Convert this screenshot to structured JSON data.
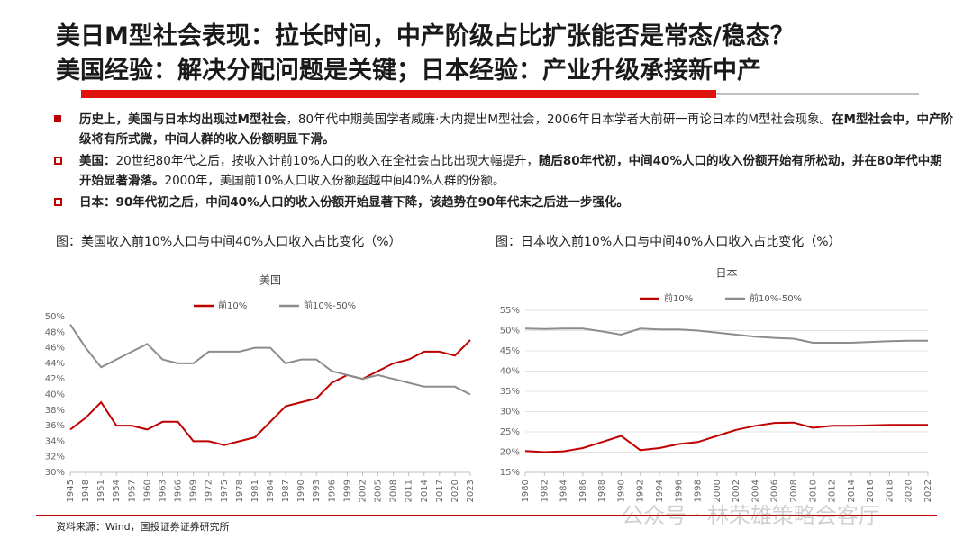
{
  "header": {
    "title_line1": "美日M型社会表现：拉长时间，中产阶级占比扩张能否是常态/稳态？",
    "title_line2": "美国经验：解决分配问题是关键；日本经验：产业升级承接新中产"
  },
  "bullets": [
    {
      "marker": "filled",
      "parts": [
        {
          "text": "历史上，美国与日本均出现过M型社会",
          "bold": true
        },
        {
          "text": "，80年代中期美国学者威廉·大内提出M型社会，2006年日本学者大前研一再论日本的M型社会现象。",
          "bold": false
        },
        {
          "text": "在M型社会中，中产阶级将有所式微，中间人群的收入份额明显下滑。",
          "bold": true
        }
      ]
    },
    {
      "marker": "hollow",
      "parts": [
        {
          "text": "美国：",
          "bold": true
        },
        {
          "text": "20世纪80年代之后，按收入计前10%人口的收入在全社会占比出现大幅提升，",
          "bold": false
        },
        {
          "text": "随后80年代初，中间40%人口的收入份额开始有所松动，并在80年代中期开始显著滑落。",
          "bold": true
        },
        {
          "text": "2000年，美国前10%人口收入份额超越中间40%人群的份额。",
          "bold": false
        }
      ]
    },
    {
      "marker": "hollow",
      "parts": [
        {
          "text": "日本：90年代初之后，中间40%人口的收入份额开始显著下降，该趋势在90年代末之后进一步强化。",
          "bold": true
        }
      ]
    }
  ],
  "captions": [
    "图：美国收入前10%人口与中间40%人口收入占比变化（%）",
    "图：日本收入前10%人口与中间40%人口收入占比变化（%）"
  ],
  "source": "资料来源：Wind，国投证券证券研究所",
  "watermark": "公众号 · 林荣雄策略会客厅",
  "chart_data": [
    {
      "type": "line",
      "title": "美国",
      "grid": false,
      "legend": "top",
      "x": [
        1945,
        1948,
        1951,
        1954,
        1957,
        1960,
        1963,
        1966,
        1969,
        1972,
        1975,
        1978,
        1981,
        1984,
        1987,
        1990,
        1993,
        1996,
        1999,
        2002,
        2005,
        2008,
        2011,
        2014,
        2017,
        2020,
        2023
      ],
      "xlim": [
        1945,
        2023
      ],
      "xticks": [
        1945,
        1948,
        1951,
        1954,
        1957,
        1960,
        1963,
        1966,
        1969,
        1972,
        1975,
        1978,
        1981,
        1984,
        1987,
        1990,
        1993,
        1996,
        1999,
        2002,
        2005,
        2008,
        2011,
        2014,
        2017,
        2020,
        2023
      ],
      "ylim": [
        30,
        50
      ],
      "yticks": [
        {
          "value": 30,
          "label": "30%"
        },
        {
          "value": 32,
          "label": "32%"
        },
        {
          "value": 34,
          "label": "34%"
        },
        {
          "value": 36,
          "label": "36%"
        },
        {
          "value": 38,
          "label": "38%"
        },
        {
          "value": 40,
          "label": "40%"
        },
        {
          "value": 42,
          "label": "42%"
        },
        {
          "value": 44,
          "label": "44%"
        },
        {
          "value": 46,
          "label": "46%"
        },
        {
          "value": 48,
          "label": "48%"
        },
        {
          "value": 50,
          "label": "50%"
        }
      ],
      "series": [
        {
          "name": "前10%",
          "color": "#c00000",
          "values": [
            35.5,
            37,
            39,
            36,
            36,
            35.5,
            36.5,
            36.5,
            34,
            34,
            33.5,
            34,
            34.5,
            36.5,
            38.5,
            39,
            39.5,
            41.5,
            42.5,
            42,
            43,
            44,
            44.5,
            45.5,
            45.5,
            45,
            47
          ]
        },
        {
          "name": "前10%-50%",
          "color": "#8c8c8c",
          "values": [
            49,
            46,
            43.5,
            44.5,
            45.5,
            46.5,
            44.5,
            44,
            44,
            45.5,
            45.5,
            45.5,
            46,
            46,
            44,
            44.5,
            44.5,
            43,
            42.5,
            42,
            42.5,
            42,
            41.5,
            41,
            41,
            41,
            40
          ]
        }
      ]
    },
    {
      "type": "line",
      "title": "日本",
      "grid": true,
      "legend": "top",
      "x": [
        1980,
        1982,
        1984,
        1986,
        1988,
        1990,
        1992,
        1994,
        1996,
        1998,
        2000,
        2002,
        2004,
        2006,
        2008,
        2010,
        2012,
        2014,
        2016,
        2018,
        2020,
        2022
      ],
      "xlim": [
        1980,
        2022
      ],
      "xticks": [
        1980,
        1982,
        1984,
        1986,
        1988,
        1990,
        1992,
        1994,
        1996,
        1998,
        2000,
        2002,
        2004,
        2006,
        2008,
        2010,
        2012,
        2014,
        2016,
        2018,
        2020,
        2022
      ],
      "ylim": [
        15,
        55
      ],
      "yticks": [
        {
          "value": 15,
          "label": "15%"
        },
        {
          "value": 20,
          "label": "20%"
        },
        {
          "value": 25,
          "label": "25%"
        },
        {
          "value": 30,
          "label": "30%"
        },
        {
          "value": 35,
          "label": "35%"
        },
        {
          "value": 40,
          "label": "40%"
        },
        {
          "value": 45,
          "label": "45%"
        },
        {
          "value": 50,
          "label": "50%"
        },
        {
          "value": 55,
          "label": "55%"
        }
      ],
      "series": [
        {
          "name": "前10%",
          "color": "#c00000",
          "values": [
            20.3,
            20,
            20.2,
            21,
            22.5,
            24,
            20.5,
            21,
            22,
            22.5,
            24,
            25.5,
            26.5,
            27.2,
            27.3,
            26,
            26.5,
            26.5,
            26.6,
            26.7,
            26.7,
            26.7
          ]
        },
        {
          "name": "前10%-50%",
          "color": "#8c8c8c",
          "values": [
            50.5,
            50.4,
            50.5,
            50.5,
            49.8,
            49,
            50.5,
            50.3,
            50.3,
            50,
            49.5,
            49,
            48.5,
            48.2,
            48,
            47,
            47,
            47,
            47.2,
            47.4,
            47.5,
            47.5
          ]
        }
      ]
    }
  ]
}
